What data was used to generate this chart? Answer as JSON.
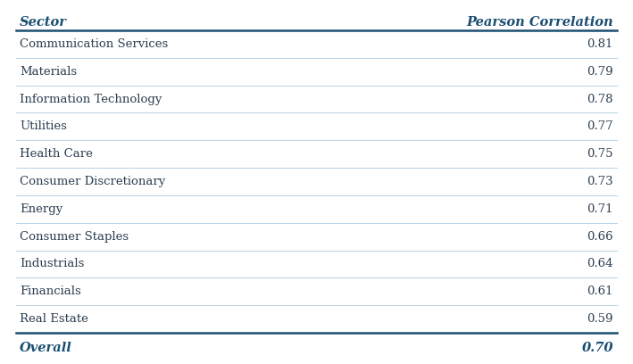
{
  "header": [
    "Sector",
    "Pearson Correlation"
  ],
  "rows": [
    [
      "Communication Services",
      "0.81"
    ],
    [
      "Materials",
      "0.79"
    ],
    [
      "Information Technology",
      "0.78"
    ],
    [
      "Utilities",
      "0.77"
    ],
    [
      "Health Care",
      "0.75"
    ],
    [
      "Consumer Discretionary",
      "0.73"
    ],
    [
      "Energy",
      "0.71"
    ],
    [
      "Consumer Staples",
      "0.66"
    ],
    [
      "Industrials",
      "0.64"
    ],
    [
      "Financials",
      "0.61"
    ],
    [
      "Real Estate",
      "0.59"
    ]
  ],
  "footer": [
    "Overall",
    "0.70"
  ],
  "header_color": "#1b4f72",
  "body_text_color": "#2c3e50",
  "footer_color": "#1b4f72",
  "divider_color_heavy": "#1b4f72",
  "divider_color_light": "#b8d4e8",
  "background_color": "#ffffff",
  "header_fontsize": 10.5,
  "body_fontsize": 9.5,
  "footer_fontsize": 10.5
}
